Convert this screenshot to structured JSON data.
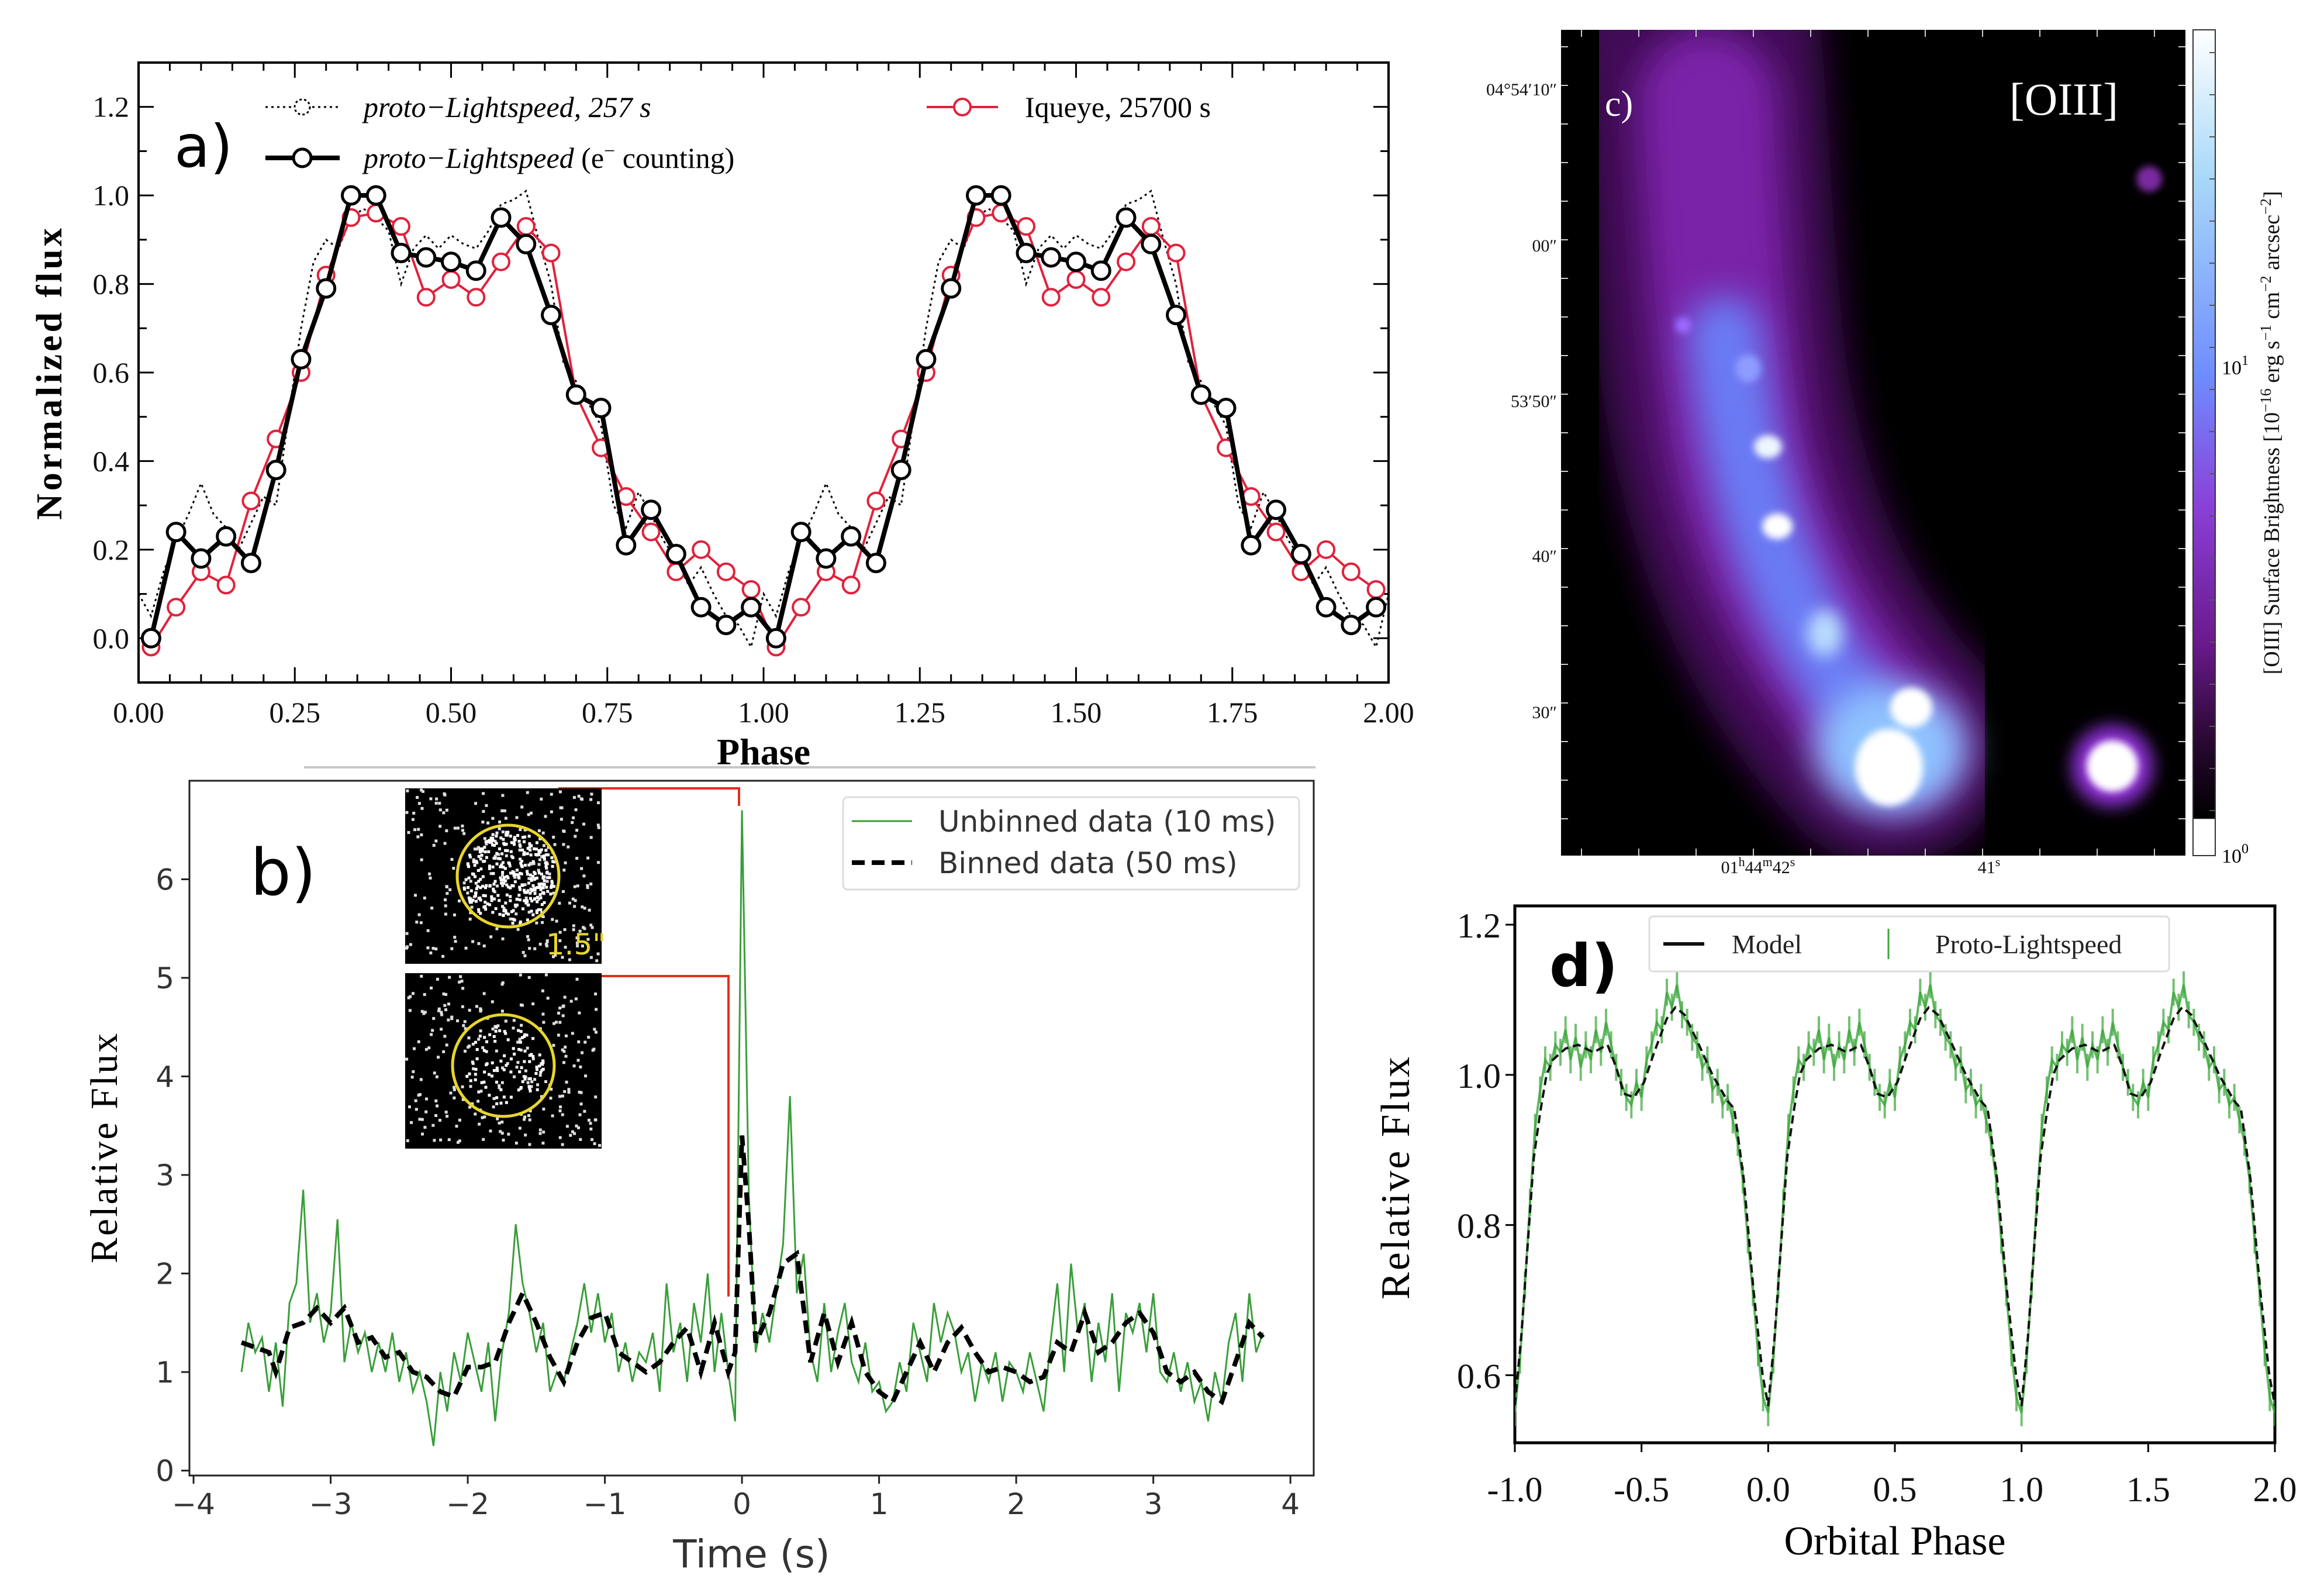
{
  "chart_data": [
    {
      "panel": "a)",
      "type": "line",
      "xlabel": "Phase",
      "ylabel": "Normalized flux",
      "xlim": [
        0,
        2
      ],
      "ylim": [
        -0.1,
        1.3
      ],
      "xticks": [
        "0.00",
        "0.25",
        "0.50",
        "0.75",
        "1.00",
        "1.25",
        "1.50",
        "1.75",
        "2.00"
      ],
      "yticks": [
        "0.0",
        "0.2",
        "0.4",
        "0.6",
        "0.8",
        "1.0",
        "1.2"
      ],
      "legend_position": "top",
      "repeated_cycles": [
        0,
        1
      ],
      "series": [
        {
          "name": "proto−Lightspeed, 257 s",
          "style": "dotted",
          "color": "#000000",
          "phase": [
            0.0,
            0.02,
            0.04,
            0.06,
            0.08,
            0.1,
            0.12,
            0.14,
            0.16,
            0.18,
            0.2,
            0.22,
            0.24,
            0.26,
            0.28,
            0.3,
            0.32,
            0.34,
            0.36,
            0.38,
            0.4,
            0.42,
            0.44,
            0.46,
            0.48,
            0.5,
            0.52,
            0.54,
            0.56,
            0.58,
            0.6,
            0.62,
            0.64,
            0.66,
            0.68,
            0.7,
            0.72,
            0.74,
            0.76,
            0.78,
            0.8,
            0.82,
            0.84,
            0.86,
            0.88,
            0.9,
            0.92,
            0.94,
            0.96,
            0.98
          ],
          "values": [
            0.1,
            0.05,
            0.15,
            0.22,
            0.28,
            0.35,
            0.28,
            0.25,
            0.2,
            0.26,
            0.32,
            0.3,
            0.5,
            0.7,
            0.85,
            0.9,
            0.88,
            0.95,
            0.97,
            0.95,
            0.92,
            0.8,
            0.88,
            0.91,
            0.88,
            0.91,
            0.89,
            0.88,
            0.92,
            0.98,
            0.99,
            1.01,
            0.9,
            0.8,
            0.62,
            0.58,
            0.53,
            0.48,
            0.3,
            0.25,
            0.33,
            0.28,
            0.22,
            0.18,
            0.12,
            0.16,
            0.1,
            0.05,
            0.03,
            -0.02
          ]
        },
        {
          "name": "proto−Lightspeed (e⁻ counting)",
          "style": "solid-thick-markers",
          "color": "#000000",
          "phase": [
            0.02,
            0.06,
            0.1,
            0.14,
            0.18,
            0.22,
            0.26,
            0.3,
            0.34,
            0.38,
            0.42,
            0.46,
            0.5,
            0.54,
            0.58,
            0.62,
            0.66,
            0.7,
            0.74,
            0.78,
            0.82,
            0.86,
            0.9,
            0.94,
            0.98
          ],
          "values": [
            0.0,
            0.24,
            0.18,
            0.23,
            0.17,
            0.38,
            0.63,
            0.79,
            1.0,
            1.0,
            0.87,
            0.86,
            0.85,
            0.83,
            0.95,
            0.89,
            0.73,
            0.55,
            0.52,
            0.21,
            0.29,
            0.19,
            0.07,
            0.03,
            0.07
          ]
        },
        {
          "name": "Iqueye, 25700 s",
          "style": "solid-markers",
          "color": "#e0223c",
          "phase": [
            0.02,
            0.06,
            0.1,
            0.14,
            0.18,
            0.22,
            0.26,
            0.3,
            0.34,
            0.38,
            0.42,
            0.46,
            0.5,
            0.54,
            0.58,
            0.62,
            0.66,
            0.7,
            0.74,
            0.78,
            0.82,
            0.86,
            0.9,
            0.94,
            0.98
          ],
          "values": [
            -0.02,
            0.07,
            0.15,
            0.12,
            0.31,
            0.45,
            0.6,
            0.82,
            0.95,
            0.96,
            0.93,
            0.77,
            0.81,
            0.77,
            0.85,
            0.93,
            0.87,
            0.55,
            0.43,
            0.32,
            0.24,
            0.15,
            0.2,
            0.15,
            0.11
          ]
        }
      ]
    },
    {
      "panel": "b)",
      "type": "line",
      "xlabel": "Time (s)",
      "ylabel": "Relative Flux",
      "xlim": [
        -4.03,
        4.17
      ],
      "ylim": [
        -0.05,
        7.0
      ],
      "xticks": [
        "−4",
        "−3",
        "−2",
        "−1",
        "0",
        "1",
        "2",
        "3",
        "4"
      ],
      "yticks": [
        "0",
        "1",
        "2",
        "3",
        "4",
        "5",
        "6"
      ],
      "legend_position": "top-right",
      "inset_label": "1.5\"",
      "series": [
        {
          "name": "Unbinned data (10 ms)",
          "color": "#3a9e3a",
          "x": [
            -3.65,
            -3.6,
            -3.55,
            -3.5,
            -3.45,
            -3.4,
            -3.35,
            -3.3,
            -3.25,
            -3.2,
            -3.15,
            -3.1,
            -3.05,
            -3.0,
            -2.95,
            -2.9,
            -2.85,
            -2.8,
            -2.75,
            -2.7,
            -2.65,
            -2.6,
            -2.55,
            -2.5,
            -2.45,
            -2.4,
            -2.35,
            -2.3,
            -2.25,
            -2.2,
            -2.15,
            -2.1,
            -2.05,
            -2.0,
            -1.95,
            -1.9,
            -1.85,
            -1.8,
            -1.75,
            -1.7,
            -1.65,
            -1.6,
            -1.55,
            -1.5,
            -1.45,
            -1.4,
            -1.35,
            -1.3,
            -1.25,
            -1.2,
            -1.15,
            -1.1,
            -1.05,
            -1.0,
            -0.95,
            -0.9,
            -0.85,
            -0.8,
            -0.75,
            -0.7,
            -0.65,
            -0.6,
            -0.55,
            -0.5,
            -0.45,
            -0.4,
            -0.35,
            -0.3,
            -0.25,
            -0.2,
            -0.15,
            -0.1,
            -0.05,
            0.0,
            0.05,
            0.1,
            0.15,
            0.2,
            0.25,
            0.3,
            0.35,
            0.4,
            0.45,
            0.5,
            0.55,
            0.6,
            0.65,
            0.7,
            0.75,
            0.8,
            0.85,
            0.9,
            0.95,
            1.0,
            1.05,
            1.1,
            1.15,
            1.2,
            1.25,
            1.3,
            1.35,
            1.4,
            1.45,
            1.5,
            1.55,
            1.6,
            1.65,
            1.7,
            1.75,
            1.8,
            1.85,
            1.9,
            1.95,
            2.0,
            2.05,
            2.1,
            2.15,
            2.2,
            2.25,
            2.3,
            2.35,
            2.4,
            2.45,
            2.5,
            2.55,
            2.6,
            2.65,
            2.7,
            2.75,
            2.8,
            2.85,
            2.9,
            2.95,
            3.0,
            3.05,
            3.1,
            3.15,
            3.2,
            3.25,
            3.3,
            3.35,
            3.4,
            3.45,
            3.5,
            3.55,
            3.6,
            3.65,
            3.7,
            3.75,
            3.8
          ],
          "values": [
            1.0,
            1.5,
            1.2,
            1.35,
            0.8,
            1.3,
            0.65,
            1.7,
            1.9,
            2.85,
            1.5,
            1.8,
            1.3,
            1.6,
            2.55,
            1.1,
            1.5,
            1.2,
            1.4,
            1.0,
            1.3,
            1.0,
            1.4,
            0.9,
            1.2,
            0.8,
            1.0,
            0.7,
            0.25,
            1.0,
            0.6,
            1.2,
            0.9,
            1.4,
            1.1,
            0.8,
            1.3,
            0.5,
            1.2,
            1.6,
            2.5,
            1.9,
            1.6,
            1.2,
            1.5,
            0.8,
            1.0,
            0.9,
            1.2,
            1.5,
            1.9,
            1.4,
            1.8,
            1.3,
            1.6,
            1.0,
            1.3,
            0.9,
            1.2,
            1.1,
            1.4,
            0.8,
            1.9,
            1.2,
            1.5,
            0.9,
            1.7,
            1.3,
            2.0,
            1.0,
            1.6,
            1.0,
            0.5,
            6.7,
            2.8,
            1.2,
            1.6,
            1.3,
            1.8,
            2.3,
            3.8,
            1.8,
            2.2,
            1.2,
            0.9,
            1.7,
            1.0,
            1.4,
            1.7,
            1.1,
            0.9,
            1.3,
            0.8,
            0.9,
            0.6,
            0.7,
            1.1,
            0.8,
            1.5,
            1.2,
            0.9,
            1.7,
            1.3,
            1.6,
            1.4,
            1.0,
            1.2,
            0.7,
            1.1,
            0.9,
            1.2,
            0.7,
            1.1,
            1.0,
            0.8,
            1.2,
            0.9,
            0.6,
            1.3,
            1.9,
            1.0,
            2.1,
            1.4,
            1.7,
            0.9,
            1.5,
            1.1,
            1.8,
            0.8,
            1.6,
            1.4,
            1.7,
            1.2,
            1.8,
            1.0,
            0.9,
            1.2,
            0.8,
            1.1,
            0.7,
            0.9,
            0.5,
            1.0,
            0.7,
            1.3,
            1.6,
            0.9,
            1.8,
            1.2,
            1.4
          ]
        },
        {
          "name": "Binned data (50 ms)",
          "color": "#000000",
          "x": [
            -3.65,
            -3.55,
            -3.45,
            -3.4,
            -3.3,
            -3.2,
            -3.1,
            -3.0,
            -2.9,
            -2.8,
            -2.7,
            -2.6,
            -2.5,
            -2.4,
            -2.3,
            -2.2,
            -2.1,
            -2.0,
            -1.9,
            -1.8,
            -1.7,
            -1.6,
            -1.5,
            -1.4,
            -1.3,
            -1.2,
            -1.1,
            -1.0,
            -0.9,
            -0.8,
            -0.7,
            -0.6,
            -0.5,
            -0.4,
            -0.3,
            -0.2,
            -0.1,
            -0.05,
            0.0,
            0.05,
            0.1,
            0.2,
            0.3,
            0.4,
            0.5,
            0.6,
            0.7,
            0.8,
            0.9,
            1.0,
            1.1,
            1.2,
            1.3,
            1.4,
            1.5,
            1.6,
            1.7,
            1.8,
            1.9,
            2.0,
            2.1,
            2.2,
            2.3,
            2.4,
            2.5,
            2.6,
            2.7,
            2.8,
            2.9,
            3.0,
            3.1,
            3.2,
            3.3,
            3.4,
            3.5,
            3.6,
            3.7,
            3.8
          ],
          "values": [
            1.3,
            1.25,
            1.2,
            1.0,
            1.45,
            1.5,
            1.65,
            1.5,
            1.65,
            1.3,
            1.35,
            1.15,
            1.2,
            1.0,
            0.95,
            0.8,
            0.75,
            1.05,
            1.05,
            1.1,
            1.5,
            1.8,
            1.5,
            1.15,
            0.9,
            1.3,
            1.55,
            1.6,
            1.2,
            1.1,
            1.0,
            1.1,
            1.3,
            1.45,
            1.0,
            1.5,
            1.0,
            1.2,
            3.4,
            2.5,
            1.3,
            1.6,
            2.1,
            2.2,
            1.1,
            1.6,
            1.1,
            1.5,
            1.0,
            0.8,
            0.7,
            1.0,
            1.3,
            1.0,
            1.3,
            1.45,
            1.2,
            1.0,
            1.05,
            1.0,
            0.9,
            0.95,
            1.3,
            1.2,
            1.6,
            1.2,
            1.3,
            1.5,
            1.6,
            1.4,
            1.0,
            0.9,
            1.0,
            0.8,
            0.7,
            1.1,
            1.5,
            1.35
          ]
        }
      ]
    },
    {
      "panel": "c)",
      "type": "heatmap",
      "title": "[OIII]",
      "yticks": [
        "04°54′10″",
        "00″",
        "53′50″",
        "40″",
        "30″"
      ],
      "xticks": [
        {
          "base": "01",
          "h": "h",
          "m_val": "44",
          "m": "m",
          "s_val": "42",
          "s": "s"
        },
        {
          "base": "41",
          "s": "s"
        }
      ],
      "colorbar": {
        "label": "[OIII] Surface Brightness [10",
        "label_exp1": "−16",
        "label_mid": " erg s",
        "label_exp2": "−1",
        "label_mid2": " cm",
        "label_exp3": "−2",
        "label_mid3": " arcsec",
        "label_exp4": "−2",
        "label_end": "]",
        "ticks": [
          {
            "base": "10",
            "exp": "1"
          },
          {
            "base": "10",
            "exp": "0"
          }
        ],
        "scale": "log",
        "colors": [
          "#ffffff",
          "#a8d8f8",
          "#6f8cff",
          "#8a3fd6",
          "#6b1a8e",
          "#2a0832",
          "#000000"
        ]
      }
    },
    {
      "panel": "d)",
      "type": "line",
      "xlabel": "Orbital Phase",
      "ylabel": "Relative Flux",
      "xlim": [
        -1.0,
        2.0
      ],
      "ylim": [
        0.51,
        1.225
      ],
      "xticks": [
        "-1.0",
        "-0.5",
        "0.0",
        "0.5",
        "1.0",
        "1.5",
        "2.0"
      ],
      "yticks": [
        "0.6",
        "0.8",
        "1.0",
        "1.2"
      ],
      "legend_position": "top",
      "repeated_cycles": [
        -1,
        0,
        1
      ],
      "series": [
        {
          "name": "Model",
          "color": "#111111",
          "phase": [
            0.0,
            0.025,
            0.05,
            0.075,
            0.1,
            0.125,
            0.15,
            0.2,
            0.25,
            0.31,
            0.366,
            0.4,
            0.43,
            0.47,
            0.51,
            0.55,
            0.6,
            0.634,
            0.67,
            0.72,
            0.78,
            0.84,
            0.866,
            0.904,
            0.94,
            0.978,
            1.0
          ],
          "values": [
            0.56,
            0.65,
            0.77,
            0.89,
            0.95,
            1.0,
            1.02,
            1.035,
            1.04,
            1.03,
            1.04,
            1.01,
            0.975,
            0.97,
            0.99,
            1.03,
            1.075,
            1.09,
            1.08,
            1.045,
            1.0,
            0.965,
            0.955,
            0.86,
            0.72,
            0.6,
            0.56
          ]
        },
        {
          "name": "Proto-Lightspeed",
          "color": "#3aa63a",
          "phase": [
            0.0,
            0.02,
            0.04,
            0.06,
            0.08,
            0.1,
            0.12,
            0.14,
            0.16,
            0.18,
            0.2,
            0.22,
            0.24,
            0.26,
            0.28,
            0.3,
            0.32,
            0.34,
            0.36,
            0.38,
            0.4,
            0.42,
            0.44,
            0.46,
            0.48,
            0.5,
            0.52,
            0.54,
            0.56,
            0.58,
            0.6,
            0.62,
            0.64,
            0.66,
            0.68,
            0.7,
            0.72,
            0.74,
            0.76,
            0.78,
            0.8,
            0.82,
            0.84,
            0.86,
            0.88,
            0.9,
            0.92,
            0.94,
            0.96,
            0.98
          ],
          "values": [
            0.55,
            0.62,
            0.72,
            0.83,
            0.93,
            0.98,
            1.02,
            1.01,
            1.04,
            1.03,
            1.06,
            1.02,
            1.05,
            1.01,
            1.04,
            1.02,
            1.06,
            1.03,
            1.07,
            1.04,
            1.01,
            0.99,
            0.97,
            0.96,
            0.99,
            0.97,
            1.02,
            1.04,
            1.07,
            1.06,
            1.11,
            1.09,
            1.12,
            1.08,
            1.07,
            1.05,
            1.04,
            1.01,
            1.02,
            0.98,
            0.99,
            0.96,
            0.97,
            0.94,
            0.91,
            0.86,
            0.78,
            0.71,
            0.63,
            0.57
          ]
        }
      ]
    }
  ],
  "panel_a": {
    "label": "a)",
    "legend": {
      "dotted": "proto−Lightspeed, 257 s",
      "thick_italic": "proto−Lightspeed",
      "thick_rest": " (e",
      "thick_sup": "−",
      "thick_end": " counting)",
      "red": "Iqueye, 25700 s"
    }
  },
  "panel_b": {
    "label": "b)"
  },
  "panel_d": {
    "label": "d)"
  }
}
